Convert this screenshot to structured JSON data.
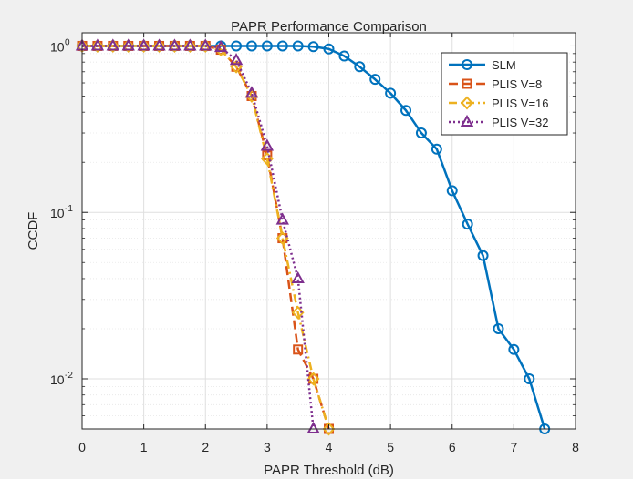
{
  "chart_data": {
    "type": "line",
    "title": "PAPR Performance Comparison",
    "xlabel": "PAPR Threshold (dB)",
    "ylabel": "CCDF",
    "xlim": [
      0,
      8
    ],
    "ylim": [
      0.005,
      1.2
    ],
    "yscale": "log",
    "grid": true,
    "minor_grid": true,
    "legend_position": "top-right",
    "x_ticks": [
      "0",
      "1",
      "2",
      "3",
      "4",
      "5",
      "6",
      "7",
      "8"
    ],
    "y_ticks": [
      {
        "base": "10",
        "exp": "0",
        "value": 1
      },
      {
        "base": "10",
        "exp": "-1",
        "value": 0.1
      },
      {
        "base": "10",
        "exp": "-2",
        "value": 0.01
      }
    ],
    "series": [
      {
        "name": "SLM",
        "color": "#0072BD",
        "dash": "solid",
        "marker": "circle",
        "x": [
          0,
          0.25,
          0.5,
          0.75,
          1,
          1.25,
          1.5,
          1.75,
          2,
          2.25,
          2.5,
          2.75,
          3,
          3.25,
          3.5,
          3.75,
          4,
          4.25,
          4.5,
          4.75,
          5,
          5.25,
          5.5,
          5.75,
          6,
          6.25,
          6.5,
          6.75,
          7,
          7.25,
          7.5
        ],
        "y": [
          1,
          1,
          1,
          1,
          1,
          1,
          1,
          1,
          1,
          1,
          1,
          1,
          1,
          1,
          1,
          0.99,
          0.96,
          0.87,
          0.75,
          0.63,
          0.52,
          0.41,
          0.3,
          0.24,
          0.135,
          0.085,
          0.055,
          0.02,
          0.015,
          0.01,
          0.005
        ]
      },
      {
        "name": "PLIS V=8",
        "color": "#D95319",
        "dash": "dashed",
        "marker": "square",
        "x": [
          0,
          0.25,
          0.5,
          0.75,
          1,
          1.25,
          1.5,
          1.75,
          2,
          2.25,
          2.5,
          2.75,
          3,
          3.25,
          3.5,
          3.75,
          4
        ],
        "y": [
          1,
          1,
          1,
          1,
          1,
          1,
          1,
          1,
          1,
          0.95,
          0.75,
          0.5,
          0.22,
          0.07,
          0.015,
          0.01,
          0.005
        ]
      },
      {
        "name": "PLIS V=16",
        "color": "#EDB120",
        "dash": "dashdot",
        "marker": "diamond",
        "x": [
          0,
          0.25,
          0.5,
          0.75,
          1,
          1.25,
          1.5,
          1.75,
          2,
          2.25,
          2.5,
          2.75,
          3,
          3.25,
          3.5,
          3.75,
          4
        ],
        "y": [
          1,
          1,
          1,
          1,
          1,
          1,
          1,
          1,
          1,
          0.95,
          0.75,
          0.5,
          0.21,
          0.07,
          0.025,
          0.01,
          0.005
        ]
      },
      {
        "name": "PLIS V=32",
        "color": "#7E2F8E",
        "dash": "dotted",
        "marker": "triangle",
        "x": [
          0,
          0.25,
          0.5,
          0.75,
          1,
          1.25,
          1.5,
          1.75,
          2,
          2.25,
          2.5,
          2.75,
          3,
          3.25,
          3.5,
          3.75
        ],
        "y": [
          1,
          1,
          1,
          1,
          1,
          1,
          1,
          1,
          1,
          0.98,
          0.82,
          0.52,
          0.25,
          0.09,
          0.04,
          0.005
        ]
      }
    ]
  }
}
